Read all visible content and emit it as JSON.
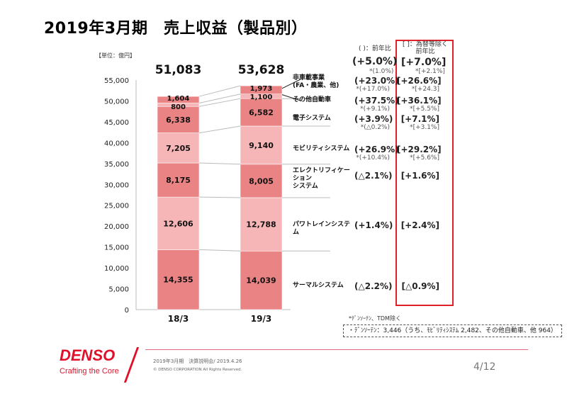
{
  "title": "2019年3月期　売上収益（製品別）",
  "unit": "【単位：億円】",
  "header_yoy": "(  )：前年比",
  "header_fx": "[  ]：為替等除く 前年比",
  "header_fx_1": "[  ]：為替等除く",
  "header_fx_2": "前年比",
  "totals": {
    "main": "(+5.0%)",
    "sub": "*(1.0%)",
    "fx_main": "[+7.0%]",
    "fx_sub": "*[+2.1%]"
  },
  "rows": [
    {
      "label1": "非車載事業",
      "label2": "(FA・農業、他)",
      "main": "(+23.0%)",
      "sub": "*(+17.0%)",
      "fx_main": "[+26.6%]",
      "fx_sub": "*[+24.3]"
    },
    {
      "label1": "その他自動車",
      "label2": "",
      "main": "(+37.5%)",
      "sub": "*(+9.1%)",
      "fx_main": "[+36.1%]",
      "fx_sub": "*[+5.5%]"
    },
    {
      "label1": "電子システム",
      "label2": "",
      "main": "(+3.9%)",
      "sub": "*(△0.2%)",
      "fx_main": "[+7.1%]",
      "fx_sub": "*[+3.1%]"
    },
    {
      "label1": "モビリティシステム",
      "label2": "",
      "main": "(+26.9%)",
      "sub": "*(+10.4%)",
      "fx_main": "[+29.2%]",
      "fx_sub": "*[+5.6%]"
    },
    {
      "label1": "エレクトリフィケーション",
      "label2": "システム",
      "main": "(△2.1%)",
      "sub": "",
      "fx_main": "[+1.6%]",
      "fx_sub": ""
    },
    {
      "label1": "パワトレインシステム",
      "label2": "",
      "main": "(+1.4%)",
      "sub": "",
      "fx_main": "[+2.4%]",
      "fx_sub": ""
    },
    {
      "label1": "サーマルシステム",
      "label2": "",
      "main": "(△2.2%)",
      "sub": "",
      "fx_main": "[△0.9%]",
      "fx_sub": ""
    }
  ],
  "footnote": "*ﾃﾞﾝｿｰﾃﾝ、TDM除く",
  "dashed_note": "・ﾃﾞﾝｿｰﾃﾝ：3,446（うち、ﾓﾋﾞﾘﾃｨｼｽﾃﾑ 2,482、その他自動車、他 964）",
  "footer": {
    "logo": "DENSO",
    "tagline": "Crafting the Core",
    "line1": "2019年3月期　決算説明会/ 2019.4.26",
    "line2": "© DENSO CORPORATION All Rights Reserved.",
    "page": "4/12"
  },
  "colors": {
    "dark": "#e98384",
    "light": "#f6b5b6",
    "accent": "#e0102a"
  },
  "chart_data": {
    "type": "stacked-bar",
    "categories": [
      "18/3",
      "19/3"
    ],
    "totals": [
      "51,083",
      "53,628"
    ],
    "ylim": [
      0,
      55000
    ],
    "yticks": [
      "0",
      "5,000",
      "10,000",
      "15,000",
      "20,000",
      "25,000",
      "30,000",
      "35,000",
      "40,000",
      "45,000",
      "50,000",
      "55,000"
    ],
    "series": [
      {
        "name": "サーマルシステム",
        "values": [
          14355,
          14039
        ],
        "labels": [
          "14,355",
          "14,039"
        ],
        "shade": "dark"
      },
      {
        "name": "パワトレインシステム",
        "values": [
          12606,
          12788
        ],
        "labels": [
          "12,606",
          "12,788"
        ],
        "shade": "light"
      },
      {
        "name": "エレクトリフィケーションシステム",
        "values": [
          8175,
          8005
        ],
        "labels": [
          "8,175",
          "8,005"
        ],
        "shade": "dark"
      },
      {
        "name": "モビリティシステム",
        "values": [
          7205,
          9140
        ],
        "labels": [
          "7,205",
          "9,140"
        ],
        "shade": "light"
      },
      {
        "name": "電子システム",
        "values": [
          6338,
          6582
        ],
        "labels": [
          "6,338",
          "6,582"
        ],
        "shade": "dark"
      },
      {
        "name": "その他自動車",
        "values": [
          800,
          1100
        ],
        "labels": [
          "800",
          "1,100"
        ],
        "shade": "light"
      },
      {
        "name": "非車載事業",
        "values": [
          1604,
          1973
        ],
        "labels": [
          "1,604",
          "1,973"
        ],
        "shade": "dark"
      }
    ]
  }
}
